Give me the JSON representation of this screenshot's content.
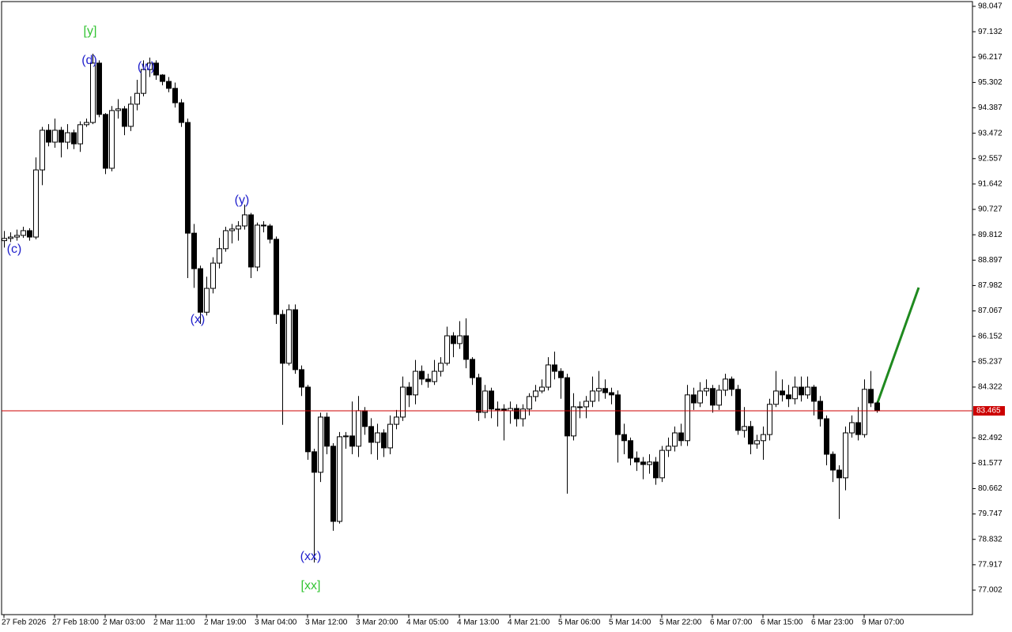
{
  "chart_data": {
    "type": "candlestick",
    "categories": [
      "27 Feb 2026",
      null,
      null,
      null,
      null,
      null,
      null,
      null,
      "27 Feb 18:00",
      null,
      null,
      null,
      null,
      null,
      null,
      null,
      "2 Mar 03:00",
      null,
      null,
      null,
      null,
      null,
      null,
      null,
      "2 Mar 11:00",
      null,
      null,
      null,
      null,
      null,
      null,
      null,
      "2 Mar 19:00",
      null,
      null,
      null,
      null,
      null,
      null,
      null,
      "3 Mar 04:00",
      null,
      null,
      null,
      null,
      null,
      null,
      null,
      "3 Mar 12:00",
      null,
      null,
      null,
      null,
      null,
      null,
      null,
      "3 Mar 20:00",
      null,
      null,
      null,
      null,
      null,
      null,
      null,
      "4 Mar 05:00",
      null,
      null,
      null,
      null,
      null,
      null,
      null,
      "4 Mar 13:00",
      null,
      null,
      null,
      null,
      null,
      null,
      null,
      "4 Mar 21:00",
      null,
      null,
      null,
      null,
      null,
      null,
      null,
      "5 Mar 06:00",
      null,
      null,
      null,
      null,
      null,
      null,
      null,
      "5 Mar 14:00",
      null,
      null,
      null,
      null,
      null,
      null,
      null,
      "5 Mar 22:00",
      null,
      null,
      null,
      null,
      null,
      null,
      null,
      "6 Mar 07:00",
      null,
      null,
      null,
      null,
      null,
      null,
      null,
      "6 Mar 15:00",
      null,
      null,
      null,
      null,
      null,
      null,
      null,
      "6 Mar 23:00",
      null,
      null,
      null,
      null,
      null,
      null,
      null,
      "9 Mar 07:00",
      null,
      null
    ],
    "open": [
      89.6,
      89.68,
      89.73,
      89.79,
      89.96,
      89.73,
      92.15,
      93.58,
      93.15,
      93.58,
      93.15,
      93.49,
      93.09,
      93.78,
      93.86,
      96.0,
      94.15,
      92.21,
      94.29,
      94.35,
      93.72,
      94.52,
      94.91,
      95.77,
      96.0,
      95.57,
      95.34,
      95.09,
      94.57,
      93.86,
      89.87,
      88.59,
      87.02,
      87.88,
      88.79,
      89.31,
      89.96,
      90.02,
      90.13,
      90.53,
      88.65,
      90.16,
      90.13,
      89.65,
      86.94,
      85.18,
      87.11,
      84.95,
      84.32,
      81.99,
      81.25,
      83.24,
      82.19,
      79.48,
      82.53,
      82.56,
      82.19,
      83.47,
      82.9,
      82.33,
      82.67,
      82.13,
      82.98,
      83.24,
      84.32,
      84.04,
      84.89,
      84.61,
      84.52,
      84.89,
      85.18,
      86.17,
      85.89,
      86.17,
      85.32,
      84.66,
      83.41,
      84.18,
      83.53,
      83.53,
      83.47,
      83.55,
      83.18,
      83.53,
      83.98,
      84.18,
      84.32,
      85.12,
      84.89,
      84.66,
      82.56,
      83.61,
      83.61,
      83.81,
      84.18,
      84.27,
      84.12,
      84.04,
      82.61,
      82.39,
      81.76,
      81.62,
      81.53,
      81.62,
      81.05,
      82.04,
      82.19,
      82.67,
      82.39,
      84.04,
      83.75,
      84.18,
      84.27,
      83.67,
      84.21,
      84.61,
      84.24,
      82.76,
      82.9,
      82.27,
      82.39,
      82.61,
      83.7,
      84.18,
      84.04,
      83.9,
      84.32,
      84.04,
      84.32,
      83.81,
      83.18,
      81.9,
      81.33,
      81.05,
      82.67,
      83.04,
      82.61,
      84.24,
      83.75
    ],
    "high": [
      89.95,
      89.9,
      90.0,
      90.1,
      90.05,
      92.6,
      93.7,
      93.8,
      94.0,
      93.7,
      93.8,
      93.6,
      93.9,
      94.0,
      96.34,
      96.1,
      94.2,
      94.45,
      94.7,
      94.45,
      94.8,
      95.4,
      96.1,
      96.2,
      96.1,
      95.6,
      95.5,
      95.3,
      94.7,
      94.0,
      90.2,
      88.7,
      88.3,
      89.0,
      89.7,
      90.1,
      90.2,
      90.3,
      90.9,
      90.6,
      90.25,
      90.3,
      90.2,
      89.75,
      87.1,
      87.3,
      87.3,
      85.1,
      84.4,
      82.1,
      83.4,
      83.4,
      82.3,
      82.7,
      82.7,
      83.8,
      84.0,
      83.6,
      83.2,
      83.0,
      82.8,
      83.3,
      83.5,
      84.7,
      84.5,
      85.3,
      85.1,
      84.8,
      85.3,
      85.4,
      86.5,
      86.3,
      86.7,
      86.8,
      85.4,
      84.8,
      84.4,
      84.3,
      83.8,
      83.7,
      83.8,
      83.7,
      83.7,
      84.1,
      84.4,
      84.6,
      85.4,
      85.6,
      85.0,
      84.8,
      84.1,
      83.8,
      84.0,
      84.7,
      84.9,
      84.6,
      84.3,
      84.2,
      83.0,
      82.5,
      82.0,
      81.8,
      81.9,
      81.8,
      82.2,
      82.5,
      82.9,
      83.0,
      84.4,
      84.3,
      84.5,
      84.6,
      84.4,
      84.4,
      84.8,
      84.7,
      84.4,
      83.6,
      83.1,
      82.6,
      82.9,
      83.9,
      84.9,
      84.6,
      84.4,
      84.7,
      84.7,
      84.7,
      84.4,
      84.0,
      83.3,
      82.0,
      81.5,
      82.9,
      83.3,
      83.6,
      84.6,
      84.9,
      83.8
    ],
    "low": [
      89.35,
      89.55,
      89.6,
      89.7,
      89.6,
      89.65,
      91.6,
      93.0,
      92.95,
      92.6,
      92.9,
      92.9,
      92.8,
      93.7,
      93.8,
      94.05,
      92.0,
      92.1,
      94.0,
      93.4,
      93.55,
      94.3,
      94.8,
      95.5,
      95.4,
      95.2,
      94.95,
      94.4,
      93.7,
      88.25,
      87.9,
      86.6,
      86.9,
      87.7,
      88.6,
      89.2,
      89.5,
      89.6,
      90.0,
      88.25,
      88.5,
      89.9,
      89.5,
      86.6,
      82.96,
      85.1,
      84.8,
      84.0,
      81.7,
      78.0,
      80.9,
      81.9,
      79.14,
      79.4,
      82.1,
      81.9,
      81.8,
      82.6,
      81.9,
      81.7,
      81.8,
      81.9,
      82.8,
      83.1,
      83.6,
      83.7,
      84.4,
      84.3,
      84.4,
      84.7,
      85.1,
      85.4,
      85.7,
      85.0,
      84.4,
      83.1,
      83.2,
      83.2,
      82.9,
      82.4,
      83.0,
      82.9,
      82.9,
      83.3,
      83.8,
      84.1,
      84.2,
      84.6,
      83.9,
      80.48,
      82.4,
      83.2,
      83.2,
      83.6,
      83.8,
      83.9,
      83.7,
      81.6,
      81.9,
      81.5,
      81.3,
      81.0,
      81.2,
      80.8,
      80.9,
      81.8,
      82.0,
      82.2,
      82.2,
      83.5,
      83.6,
      84.0,
      83.4,
      83.5,
      84.0,
      84.0,
      82.6,
      82.5,
      81.9,
      82.1,
      81.7,
      82.4,
      83.6,
      83.8,
      83.6,
      83.7,
      83.8,
      83.9,
      83.3,
      82.9,
      81.5,
      80.9,
      79.57,
      80.6,
      82.5,
      82.4,
      82.5,
      83.6,
      83.4
    ],
    "close": [
      89.68,
      89.73,
      89.79,
      89.96,
      89.73,
      92.15,
      93.58,
      93.15,
      93.58,
      93.15,
      93.49,
      93.09,
      93.78,
      93.86,
      96.0,
      94.15,
      92.21,
      94.29,
      94.35,
      93.72,
      94.52,
      94.91,
      95.77,
      96.0,
      95.57,
      95.34,
      95.09,
      94.57,
      93.86,
      89.87,
      88.59,
      87.02,
      87.88,
      88.79,
      89.31,
      89.96,
      90.02,
      90.13,
      90.53,
      88.65,
      90.16,
      90.13,
      89.65,
      86.94,
      85.18,
      87.11,
      84.95,
      84.32,
      81.99,
      81.25,
      83.24,
      82.19,
      79.48,
      82.53,
      82.56,
      82.19,
      83.47,
      82.9,
      82.33,
      82.67,
      82.13,
      82.98,
      83.24,
      84.32,
      84.04,
      84.89,
      84.61,
      84.52,
      84.89,
      85.18,
      86.17,
      85.89,
      86.17,
      85.32,
      84.66,
      83.41,
      84.18,
      83.53,
      83.53,
      83.47,
      83.55,
      83.18,
      83.53,
      83.98,
      84.18,
      84.32,
      85.12,
      84.89,
      84.66,
      82.56,
      83.61,
      83.61,
      83.81,
      84.18,
      84.27,
      84.12,
      84.04,
      82.61,
      82.39,
      81.76,
      81.62,
      81.53,
      81.62,
      81.05,
      82.04,
      82.19,
      82.67,
      82.39,
      84.04,
      83.75,
      84.18,
      84.27,
      83.67,
      84.21,
      84.61,
      84.24,
      82.76,
      82.9,
      82.27,
      82.39,
      82.61,
      83.7,
      84.18,
      84.04,
      83.9,
      84.32,
      84.04,
      84.32,
      83.81,
      83.18,
      81.9,
      81.33,
      81.05,
      82.67,
      83.04,
      82.61,
      84.24,
      83.75,
      83.465
    ],
    "ylim": [
      76.119,
      98.218
    ],
    "yticks": [
      77.002,
      77.917,
      78.832,
      79.747,
      80.662,
      81.577,
      82.492,
      84.322,
      85.237,
      86.152,
      87.067,
      87.982,
      88.897,
      89.812,
      90.727,
      91.642,
      92.557,
      93.472,
      94.387,
      95.302,
      96.217,
      97.132,
      98.047
    ],
    "price_line": 83.465,
    "price_line_color": "#cc0000",
    "annotations": [
      {
        "text": "(c)",
        "color": "#1f1fcc"
      },
      {
        "text": "(d)",
        "color": "#1f1fcc"
      },
      {
        "text": "(w)",
        "color": "#1f1fcc"
      },
      {
        "text": "(x)",
        "color": "#1f1fcc"
      },
      {
        "text": "(y)",
        "color": "#1f1fcc"
      },
      {
        "text": "(xx)",
        "color": "#1f1fcc"
      },
      {
        "text": "[y]",
        "color": "#33c433"
      },
      {
        "text": "[xx]",
        "color": "#33c433"
      }
    ]
  }
}
